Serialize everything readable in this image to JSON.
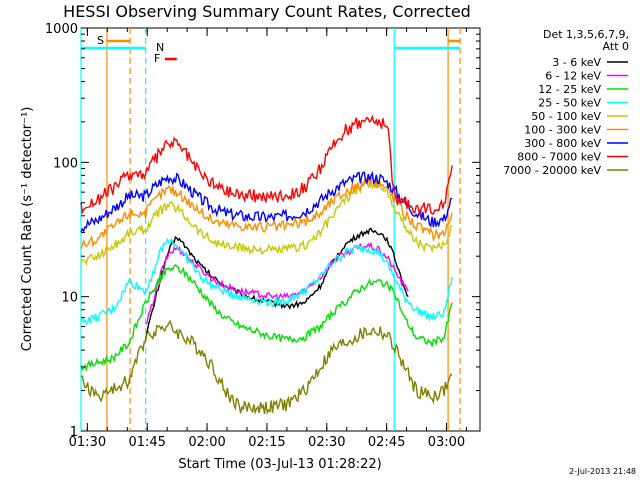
{
  "chart_data": {
    "type": "line",
    "title": "HESSI Observing Summary Count Rates, Corrected",
    "xlabel": "Start Time (03-Jul-13 01:28:22)",
    "ylabel": "Corrected Count Rate (s⁻¹ detector⁻¹)",
    "x_unit": "minutes after 01:28:22",
    "x_range": [
      0,
      100
    ],
    "y_range": [
      1,
      1000
    ],
    "y_scale": "log",
    "x_ticks": [
      {
        "label": "01:30",
        "x": 1.6
      },
      {
        "label": "01:45",
        "x": 16.6
      },
      {
        "label": "02:00",
        "x": 31.6
      },
      {
        "label": "02:15",
        "x": 46.6
      },
      {
        "label": "02:30",
        "x": 61.6
      },
      {
        "label": "02:45",
        "x": 76.6
      },
      {
        "label": "03:00",
        "x": 91.6
      }
    ],
    "y_ticks": [
      {
        "label": "1",
        "y": 1
      },
      {
        "label": "10",
        "y": 10
      },
      {
        "label": "100",
        "y": 100
      },
      {
        "label": "1000",
        "y": 1000
      }
    ],
    "legend": {
      "header1": "Det 1,3,5,6,7,9,",
      "header2": "Att 0",
      "placement": "right"
    },
    "series": [
      {
        "name": "3 - 6 keV",
        "color": "#000000",
        "x": [
          16.2,
          18,
          20,
          22,
          24,
          26,
          28,
          30,
          33,
          36,
          40,
          44,
          48,
          52,
          56,
          60,
          63,
          66,
          69,
          72,
          75,
          77,
          79,
          81,
          82
        ],
        "y": [
          5,
          8,
          14,
          22,
          28,
          24,
          20,
          17,
          14,
          12,
          10.5,
          9.5,
          9,
          8.5,
          9,
          12,
          18,
          24,
          28,
          31,
          30,
          26,
          18,
          12,
          10
        ]
      },
      {
        "name": "6 - 12 keV",
        "color": "#ff00ff",
        "x": [
          16.2,
          18,
          20,
          22,
          24,
          26,
          28,
          30,
          33,
          36,
          40,
          44,
          48,
          52,
          56,
          60,
          63,
          66,
          69,
          72,
          75,
          77,
          79,
          81,
          82
        ],
        "y": [
          6,
          9,
          15,
          21,
          23,
          21,
          18,
          16,
          13.5,
          12,
          11,
          10.5,
          10,
          10,
          11,
          14,
          18,
          21,
          23,
          24,
          22,
          19,
          15,
          12,
          11
        ]
      },
      {
        "name": "12 - 25 keV",
        "color": "#00e000",
        "x": [
          0,
          4,
          8,
          10,
          12,
          16.2,
          18,
          20,
          22,
          24,
          26,
          28,
          30,
          33,
          36,
          40,
          44,
          48,
          52,
          56,
          60,
          63,
          66,
          69,
          72,
          75,
          77,
          79,
          81,
          84,
          88,
          91,
          93
        ],
        "y": [
          3,
          3.2,
          3.5,
          4,
          4.5,
          9,
          11,
          14,
          16,
          16.5,
          15,
          13,
          11,
          8.5,
          7,
          6,
          5.5,
          5,
          4.8,
          5,
          6,
          7.5,
          9,
          11,
          12.5,
          13,
          12,
          10,
          7,
          5,
          4.5,
          5,
          9
        ]
      },
      {
        "name": "25 - 50 keV",
        "color": "#00ffff",
        "x": [
          0,
          4,
          8,
          10,
          12,
          16.2,
          18,
          20,
          22,
          24,
          26,
          28,
          30,
          33,
          36,
          40,
          44,
          48,
          52,
          56,
          60,
          63,
          66,
          69,
          72,
          75,
          77,
          79,
          81,
          84,
          88,
          91,
          93
        ],
        "y": [
          6.5,
          7,
          8,
          10,
          13,
          11,
          15,
          22,
          27,
          24,
          20,
          17,
          14,
          12,
          11,
          10,
          9.5,
          9,
          9.5,
          11,
          14,
          18,
          21,
          23,
          23,
          21,
          17,
          13,
          10,
          8,
          7,
          7.5,
          14
        ]
      },
      {
        "name": "50 - 100 keV",
        "color": "#c8c800",
        "x": [
          0,
          4,
          8,
          10,
          12,
          16.2,
          18,
          20,
          22,
          24,
          26,
          28,
          30,
          33,
          36,
          40,
          44,
          48,
          52,
          56,
          60,
          63,
          66,
          69,
          72,
          75,
          77,
          79,
          81,
          84,
          88,
          91,
          93
        ],
        "y": [
          18,
          20,
          24,
          26,
          30,
          32,
          38,
          44,
          48,
          46,
          40,
          35,
          30,
          26,
          24,
          23,
          22.5,
          22,
          22.5,
          24,
          30,
          40,
          52,
          62,
          70,
          68,
          58,
          45,
          34,
          26,
          22,
          24,
          34
        ]
      },
      {
        "name": "100 - 300 keV",
        "color": "#ff8c00",
        "x": [
          0,
          4,
          8,
          10,
          12,
          16.2,
          18,
          20,
          22,
          24,
          26,
          28,
          30,
          33,
          36,
          40,
          44,
          48,
          52,
          56,
          60,
          63,
          66,
          69,
          72,
          75,
          77,
          79,
          81,
          84,
          88,
          91,
          93
        ],
        "y": [
          24,
          27,
          33,
          37,
          42,
          42,
          50,
          58,
          64,
          60,
          54,
          48,
          43,
          37,
          35,
          34,
          33,
          33,
          34,
          36,
          42,
          52,
          60,
          66,
          72,
          70,
          62,
          52,
          42,
          34,
          29,
          30,
          42
        ]
      },
      {
        "name": "300 - 800 keV",
        "color": "#0000ff",
        "x": [
          0,
          4,
          8,
          10,
          12,
          16.2,
          18,
          20,
          22,
          24,
          26,
          28,
          30,
          33,
          36,
          40,
          44,
          48,
          52,
          56,
          60,
          63,
          66,
          69,
          72,
          75,
          77,
          79,
          81,
          84,
          88,
          91,
          93
        ],
        "y": [
          33,
          37,
          45,
          50,
          56,
          56,
          64,
          72,
          78,
          75,
          68,
          60,
          53,
          46,
          42,
          40,
          39,
          39,
          40,
          43,
          52,
          62,
          70,
          76,
          78,
          76,
          70,
          60,
          50,
          42,
          36,
          38,
          54
        ]
      },
      {
        "name": "800 - 7000 keV",
        "color": "#ff0000",
        "x": [
          0,
          4,
          8,
          10,
          12,
          16.2,
          18,
          20,
          22,
          24,
          26,
          28,
          30,
          33,
          36,
          40,
          44,
          48,
          52,
          56,
          60,
          63,
          66,
          69,
          72,
          75,
          77,
          78,
          79,
          81,
          84,
          88,
          91,
          93
        ],
        "y": [
          46,
          52,
          64,
          72,
          82,
          82,
          100,
          120,
          140,
          138,
          120,
          98,
          82,
          70,
          62,
          58,
          56,
          56,
          58,
          64,
          90,
          130,
          170,
          195,
          210,
          200,
          180,
          70,
          55,
          50,
          46,
          45,
          50,
          95
        ]
      },
      {
        "name": "7000 - 20000 keV",
        "color": "#808000",
        "x": [
          0,
          4,
          8,
          10,
          12,
          16.2,
          18,
          20,
          22,
          24,
          26,
          28,
          30,
          33,
          36,
          40,
          44,
          48,
          52,
          56,
          60,
          63,
          66,
          69,
          72,
          75,
          77,
          79,
          81,
          84,
          88,
          91,
          93
        ],
        "y": [
          2.4,
          1.8,
          2,
          2.2,
          2.4,
          5,
          5.5,
          6,
          6,
          5.5,
          5,
          4.5,
          4,
          3,
          2,
          1.5,
          1.5,
          1.5,
          1.6,
          2,
          3,
          4,
          4.5,
          5,
          5.5,
          5.5,
          5,
          4,
          3,
          2,
          1.8,
          2,
          2.6
        ]
      }
    ],
    "annotations": [
      {
        "label": "S",
        "color": "#ff8c00"
      },
      {
        "label": "N",
        "color": "#00ffff"
      },
      {
        "label": "F",
        "color": "#ff0000"
      }
    ],
    "bars": [
      {
        "name": "S",
        "color": "#ff8c00",
        "x_start": 6.5,
        "x_end": 12.3
      },
      {
        "name": "S",
        "color": "#ff8c00",
        "x_start": 92,
        "x_end": 95
      },
      {
        "name": "N",
        "color": "#00ffff",
        "x_start": 0,
        "x_end": 16.2
      },
      {
        "name": "N",
        "color": "#00ffff",
        "x_start": 78.5,
        "x_end": 95
      },
      {
        "name": "F",
        "color": "#ff0000",
        "x_start": 21,
        "x_end": 24
      }
    ],
    "vlines": [
      {
        "x": 0,
        "color": "#00ffff",
        "dash": false
      },
      {
        "x": 6.5,
        "color": "#ff8c00",
        "dash": false
      },
      {
        "x": 12.3,
        "color": "#ff8c00",
        "dash": true
      },
      {
        "x": 16.2,
        "color": "#00ffff",
        "dash": true
      },
      {
        "x": 78.5,
        "color": "#00ffff",
        "dash": false
      },
      {
        "x": 92,
        "color": "#ff8c00",
        "dash": false
      },
      {
        "x": 95,
        "color": "#ff8c00",
        "dash": true
      }
    ],
    "timestamp": "2-Jul-2013 21:48",
    "grid": false
  }
}
